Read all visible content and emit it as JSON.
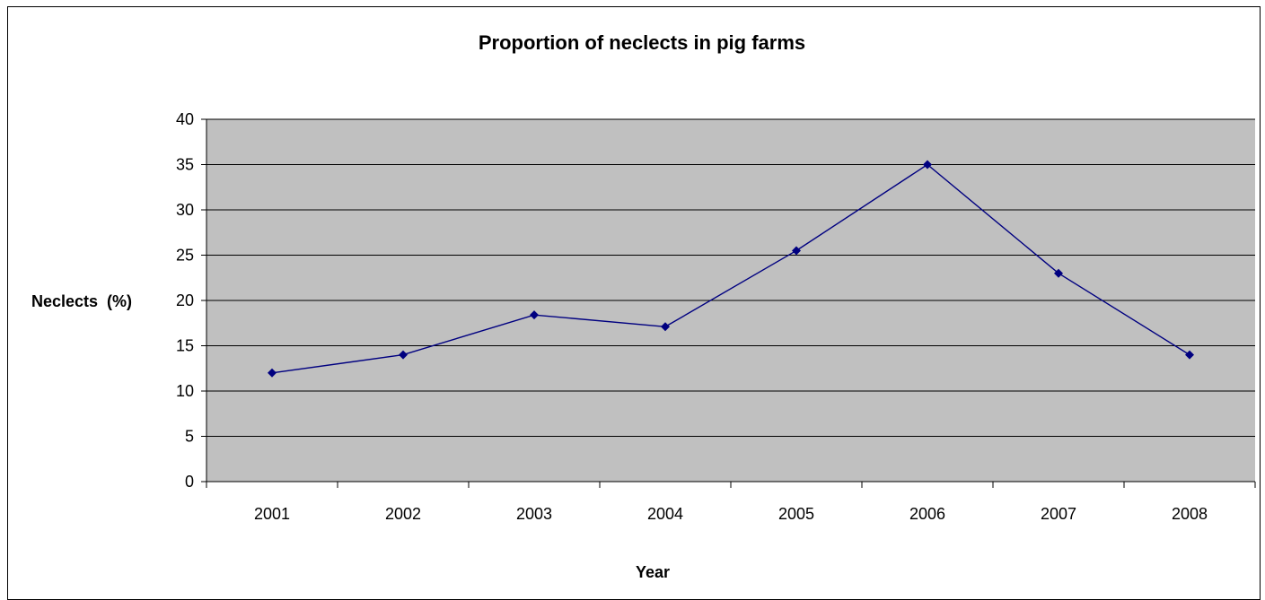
{
  "chart_data": {
    "type": "line",
    "title": "Proportion of neclects in pig farms",
    "xlabel": "Year",
    "ylabel": "Neclects  (%)",
    "categories": [
      "2001",
      "2002",
      "2003",
      "2004",
      "2005",
      "2006",
      "2007",
      "2008"
    ],
    "series": [
      {
        "values": [
          12,
          14,
          18.4,
          17.1,
          25.5,
          35,
          23,
          14
        ]
      }
    ],
    "ylim": [
      0,
      40
    ],
    "yticks": [
      0,
      5,
      10,
      15,
      20,
      25,
      30,
      35,
      40
    ],
    "grid": true,
    "legend": "none",
    "colors": {
      "plot_background": "#c0c0c0",
      "line": "#000080",
      "marker": "#000080",
      "gridline": "#000000"
    }
  }
}
